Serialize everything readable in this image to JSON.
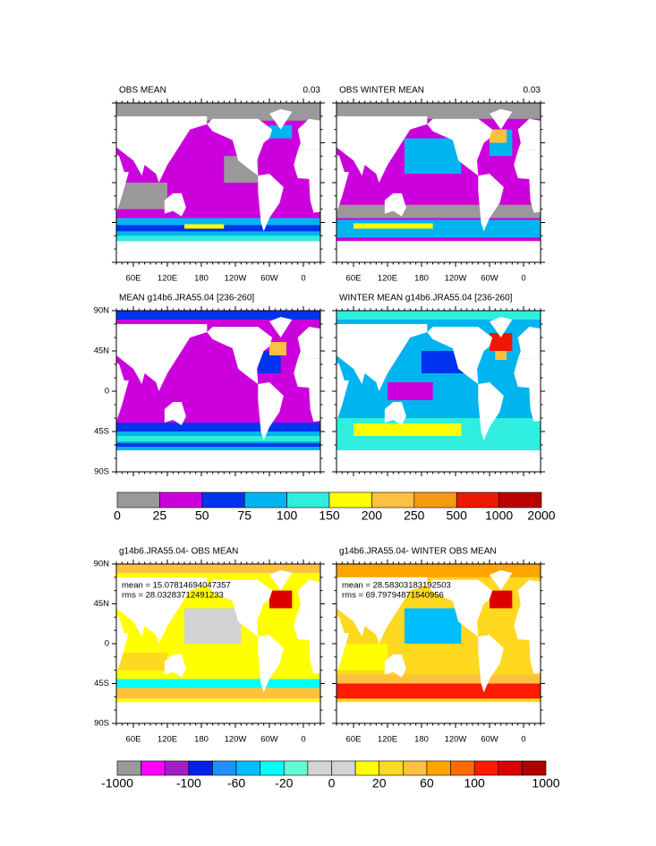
{
  "panels": [
    {
      "title": "OBS MEAN",
      "right": "0.03",
      "xlabels": [
        "60E",
        "120E",
        "180",
        "120W",
        "60W",
        "0"
      ]
    },
    {
      "title": "OBS WINTER MEAN",
      "right": "0.03",
      "xlabels": [
        "60E",
        "120E",
        "180",
        "120W",
        "60W",
        "0"
      ]
    },
    {
      "title": "MEAN g14b6.JRA55.04 [236-260]",
      "ylabels": [
        "90N",
        "45N",
        "0",
        "45S",
        "90S"
      ]
    },
    {
      "title": "WINTER MEAN g14b6.JRA55.04 [236-260]"
    },
    {
      "title": "g14b6.JRA55.04- OBS MEAN",
      "mean": "mean = 15.07814694047357",
      "rms": "rms = 28.03283712491233",
      "ylabels": [
        "90N",
        "45N",
        "0",
        "45S",
        "90S"
      ],
      "xlabels": [
        "60E",
        "120E",
        "180",
        "120W",
        "60W",
        "0"
      ]
    },
    {
      "title": "g14b6.JRA55.04- WINTER OBS MEAN",
      "mean": "mean = 28.58303183192503",
      "rms": "rms = 69.79794871540956",
      "xlabels": [
        "60E",
        "120E",
        "180",
        "120W",
        "60W",
        "0"
      ]
    }
  ],
  "colorbars": [
    {
      "colors": [
        "#999999",
        "#cc00dd",
        "#0033ee",
        "#00b4f0",
        "#30eedd",
        "#ffff00",
        "#ffc040",
        "#f59a10",
        "#ee1800",
        "#bb0000"
      ],
      "labels": [
        0,
        25,
        50,
        75,
        100,
        150,
        200,
        250,
        500,
        1000,
        2000
      ]
    },
    {
      "colors": [
        "#999999",
        "#ff00ff",
        "#a020c8",
        "#0020ee",
        "#1e90ff",
        "#00bfff",
        "#00ffff",
        "#60ffd8",
        "#d3d3d3",
        "#d3d3d3",
        "#ffff00",
        "#ffd820",
        "#ffc040",
        "#ffa500",
        "#ff6a00",
        "#ff1a00",
        "#dd0000",
        "#b00000"
      ],
      "labels": [
        -1000,
        null,
        null,
        -100,
        null,
        -60,
        null,
        -20,
        null,
        0,
        null,
        20,
        null,
        60,
        null,
        100,
        null,
        null,
        1000
      ]
    }
  ]
}
